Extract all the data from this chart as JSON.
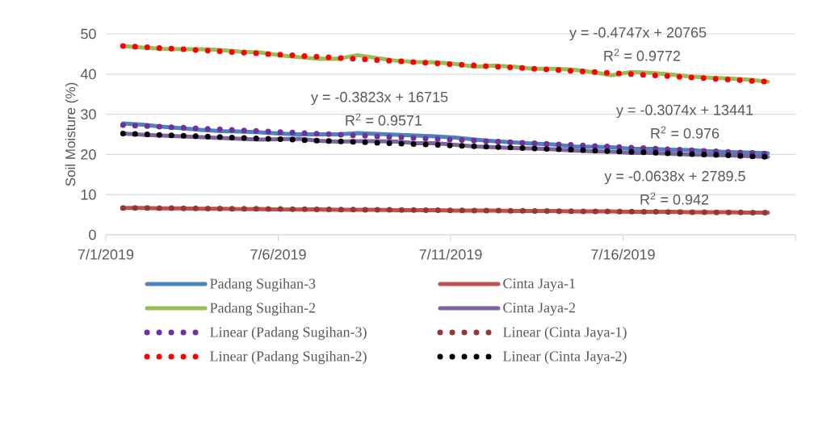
{
  "chart_data": {
    "type": "line",
    "ylabel": "Soil Moisture (%)",
    "x": [
      "2019-07-01T12:00",
      "2019-07-02T01:36",
      "2019-07-02T15:12",
      "2019-07-03T04:48",
      "2019-07-03T18:24",
      "2019-07-04T08:00",
      "2019-07-04T21:36",
      "2019-07-05T11:12",
      "2019-07-06T00:48",
      "2019-07-06T14:24",
      "2019-07-07T04:00",
      "2019-07-07T17:36",
      "2019-07-08T07:12",
      "2019-07-08T20:48",
      "2019-07-09T10:24",
      "2019-07-10T00:00",
      "2019-07-10T13:36",
      "2019-07-11T03:12",
      "2019-07-11T16:48",
      "2019-07-12T06:24",
      "2019-07-12T20:00",
      "2019-07-13T09:36",
      "2019-07-13T23:12",
      "2019-07-14T12:48",
      "2019-07-15T02:24",
      "2019-07-15T16:00",
      "2019-07-16T05:36",
      "2019-07-16T19:12",
      "2019-07-17T08:48",
      "2019-07-17T22:24",
      "2019-07-18T12:00",
      "2019-07-19T01:36",
      "2019-07-19T15:12",
      "2019-07-20T04:48"
    ],
    "series": [
      {
        "name": "Padang Sugihan-3",
        "color": "#4f81bd",
        "values": [
          27.7,
          27.4,
          26.9,
          26.5,
          26.1,
          25.8,
          25.7,
          25.5,
          25.2,
          25.0,
          25.0,
          25.0,
          25.3,
          25.1,
          24.9,
          24.7,
          24.5,
          24.2,
          23.7,
          23.3,
          23.0,
          22.7,
          22.5,
          22.0,
          21.9,
          21.8,
          21.4,
          21.4,
          21.2,
          21.1,
          20.8,
          20.6,
          20.5,
          20.3
        ]
      },
      {
        "name": "Cinta Jaya-1",
        "color": "#c0504d",
        "values": [
          6.7,
          6.7,
          6.6,
          6.6,
          6.5,
          6.5,
          6.4,
          6.4,
          6.3,
          6.3,
          6.3,
          6.2,
          6.2,
          6.2,
          6.1,
          6.1,
          6.1,
          6.0,
          6.0,
          6.0,
          5.9,
          5.9,
          5.9,
          5.8,
          5.8,
          5.8,
          5.7,
          5.7,
          5.7,
          5.6,
          5.6,
          5.6,
          5.5,
          5.5
        ]
      },
      {
        "name": "Padang Sugihan-2",
        "color": "#9bbb59",
        "values": [
          47.0,
          46.6,
          46.3,
          46.2,
          46.2,
          46.0,
          45.6,
          45.4,
          44.7,
          44.2,
          43.8,
          43.8,
          44.7,
          44.0,
          43.3,
          43.0,
          42.9,
          42.5,
          41.8,
          42.1,
          41.8,
          41.3,
          41.3,
          41.1,
          40.5,
          39.7,
          40.5,
          40.3,
          39.9,
          39.4,
          39.1,
          38.9,
          38.6,
          38.1
        ]
      },
      {
        "name": "Cinta Jaya-2",
        "color": "#8064a2",
        "values": [
          25.2,
          24.9,
          24.7,
          24.5,
          24.3,
          24.1,
          23.9,
          23.7,
          23.8,
          23.9,
          23.4,
          23.2,
          23.3,
          23.3,
          23.2,
          22.8,
          22.8,
          22.4,
          22.0,
          21.8,
          21.6,
          21.5,
          21.3,
          21.0,
          20.8,
          20.7,
          20.4,
          20.4,
          20.2,
          20.0,
          19.9,
          19.8,
          19.6,
          19.4
        ]
      },
      {
        "name": "Linear (Padang Sugihan-3)",
        "type": "line",
        "line_style": "dotted",
        "color": "#7030a0",
        "x": [
          "2019-07-01T12:00",
          "2019-07-20T04:48"
        ],
        "values": [
          27.3,
          20.2
        ]
      },
      {
        "name": "Linear (Cinta Jaya-1)",
        "type": "line",
        "line_style": "dotted",
        "color": "#953735",
        "x": [
          "2019-07-01T12:00",
          "2019-07-20T04:48"
        ],
        "values": [
          6.7,
          5.5
        ]
      },
      {
        "name": "Linear (Padang Sugihan-2)",
        "type": "line",
        "line_style": "dotted",
        "color": "#ff0000",
        "x": [
          "2019-07-01T12:00",
          "2019-07-20T04:48"
        ],
        "values": [
          47.0,
          38.1
        ]
      },
      {
        "name": "Linear (Cinta Jaya-2)",
        "type": "line",
        "line_style": "dotted",
        "color": "#000000",
        "x": [
          "2019-07-01T12:00",
          "2019-07-20T04:48"
        ],
        "values": [
          25.2,
          19.4
        ]
      }
    ],
    "xlim": [
      "2019-07-01",
      "2019-07-21"
    ],
    "xticks": [
      {
        "value": "2019-07-01",
        "label": "7/1/2019"
      },
      {
        "value": "2019-07-06",
        "label": "7/6/2019"
      },
      {
        "value": "2019-07-11",
        "label": "7/11/2019"
      },
      {
        "value": "2019-07-16",
        "label": "7/16/2019"
      },
      {
        "value": "2019-07-21",
        "label": null
      }
    ],
    "ylim": [
      0,
      50
    ],
    "yticks": [
      0,
      10,
      20,
      30,
      40,
      50
    ],
    "grid": "y",
    "legend": "bottom",
    "annotations": [
      "y = -0.4747x + 20765",
      "R$^{2}$ = 0.9772",
      "y = -0.3823x + 16715",
      "R$^{2}$ = 0.9571",
      "y = -0.3074x + 13441",
      "R$^{2}$ = 0.976",
      "y = -0.0638x + 2789.5",
      "R$^{2}$ = 0.942"
    ]
  }
}
